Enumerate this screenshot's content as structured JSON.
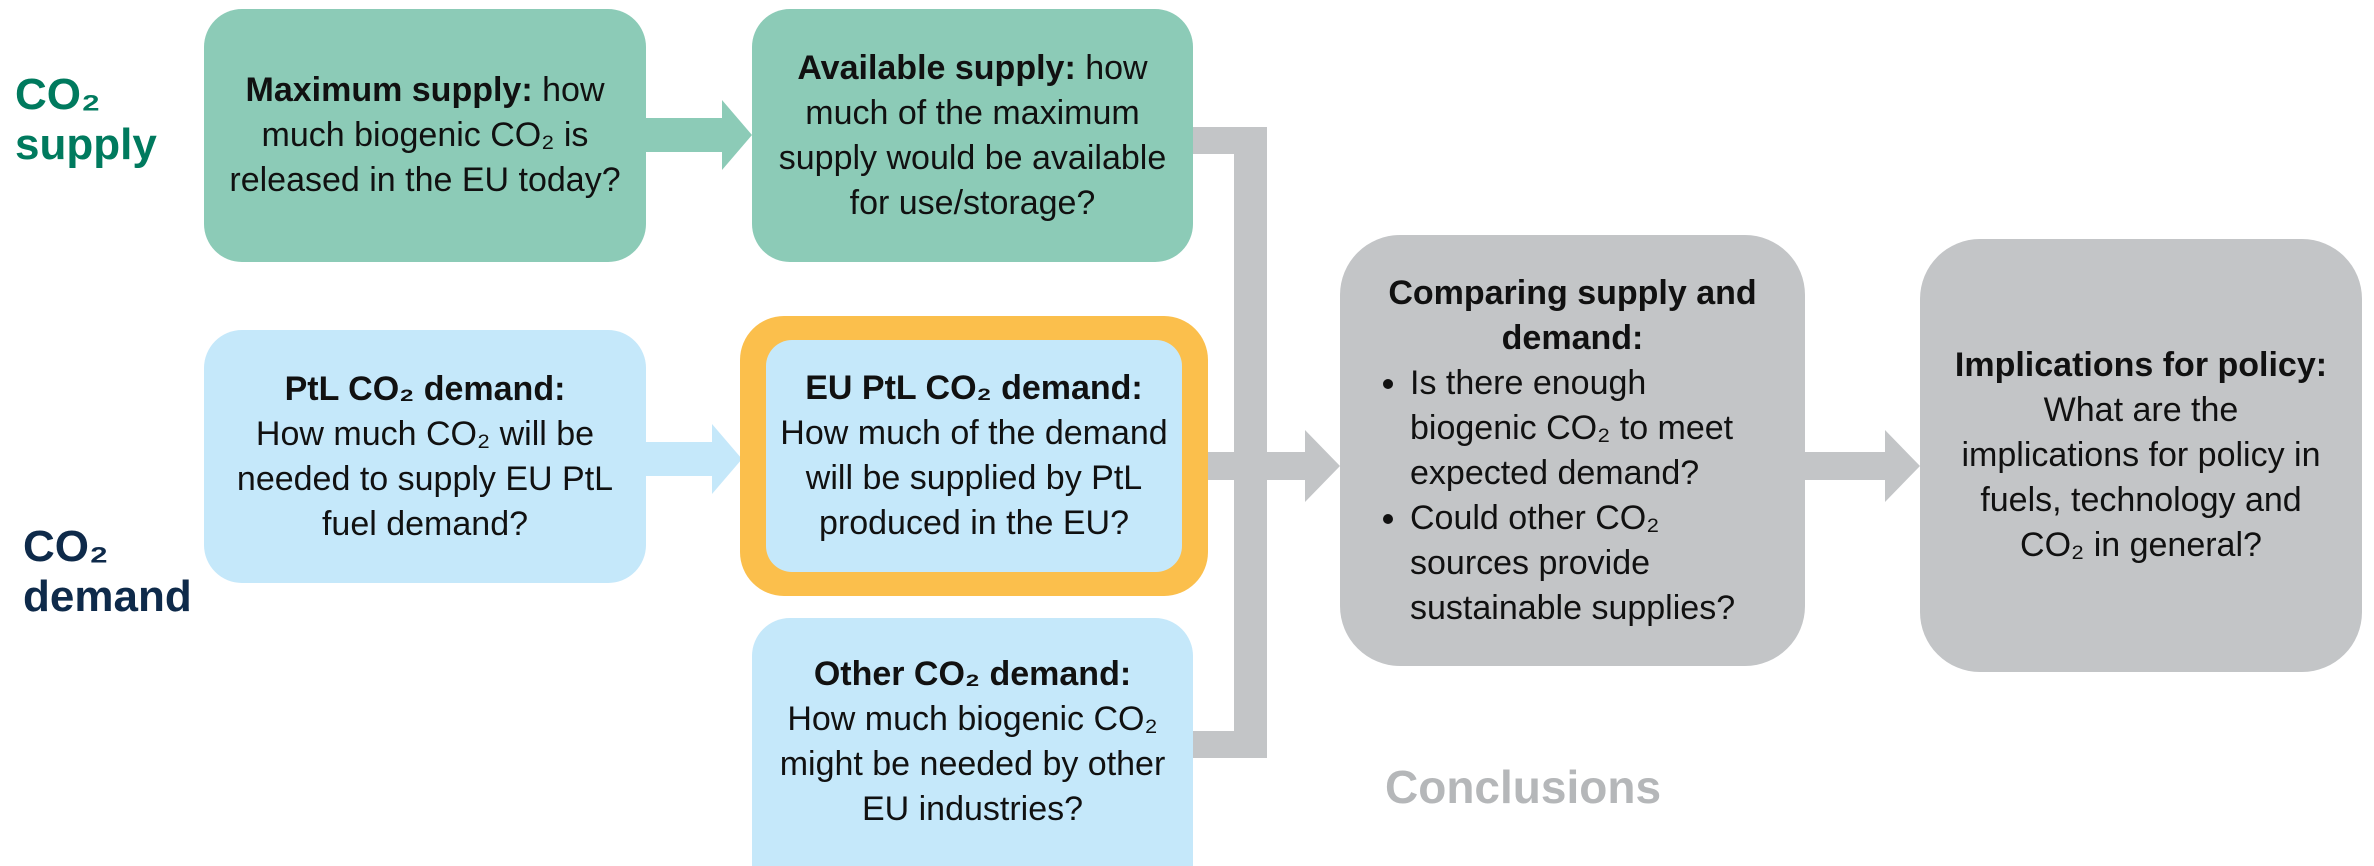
{
  "side_labels": {
    "supply": "CO₂ supply",
    "demand": "CO₂ demand"
  },
  "nodes": [
    {
      "title": "Maximum supply:",
      "text": "how much biogenic CO₂ is released in the EU today?"
    },
    {
      "title": "Available supply:",
      "text": "how much of the maximum supply would be available for use/storage?"
    },
    {
      "title": "PtL CO₂ demand:",
      "text": "How much CO₂ will be needed to supply EU PtL fuel demand?"
    },
    {
      "title": "EU PtL CO₂ demand:",
      "text": "How much of the demand will be supplied by PtL produced in the EU?"
    },
    {
      "title": "Other CO₂ demand:",
      "text": "How much biogenic CO₂ might be needed by other EU industries?"
    }
  ],
  "comparing": {
    "title": "Comparing supply and demand:",
    "bullets": [
      "Is there enough biogenic CO₂ to meet expected demand?",
      "Could other CO₂ sources provide sustainable supplies?"
    ]
  },
  "implications": {
    "title": "Implications for policy:",
    "text": "What are the implications for policy in fuels, technology and CO₂ in general?"
  },
  "conclusions": "Conclusions"
}
